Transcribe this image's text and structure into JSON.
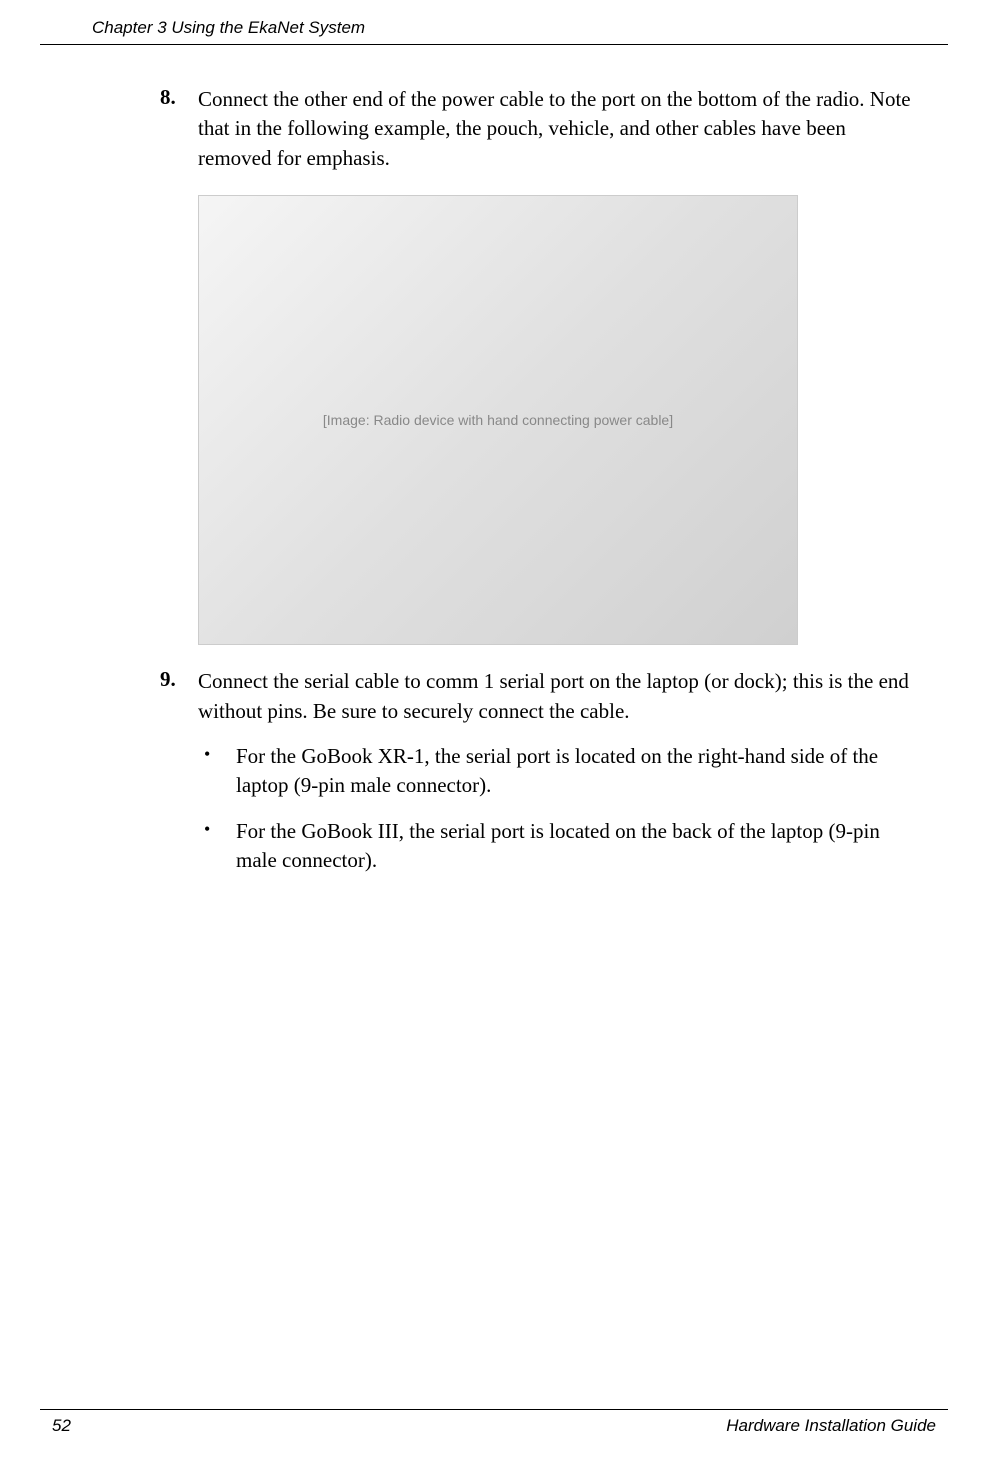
{
  "header": {
    "chapter": "Chapter 3    Using the EkaNet System"
  },
  "steps": [
    {
      "number": "8.",
      "text": "Connect the other end of the power cable to the port on the bottom of the radio. Note that in the following example, the pouch, vehicle, and other cables have been removed for emphasis."
    },
    {
      "number": "9.",
      "text": "Connect the serial cable to comm 1 serial port on the laptop (or dock); this is the end without pins. Be sure to securely connect the cable."
    }
  ],
  "bullets": [
    {
      "text": "For the GoBook XR-1, the serial port is located on the right-hand side of the laptop (9-pin male connector)."
    },
    {
      "text": "For the GoBook III, the serial port is located on the back of the laptop (9-pin male connector)."
    }
  ],
  "image": {
    "placeholder_label": "[Image: Radio device with hand connecting power cable]"
  },
  "footer": {
    "page_number": "52",
    "doc_title": "Hardware Installation Guide"
  }
}
